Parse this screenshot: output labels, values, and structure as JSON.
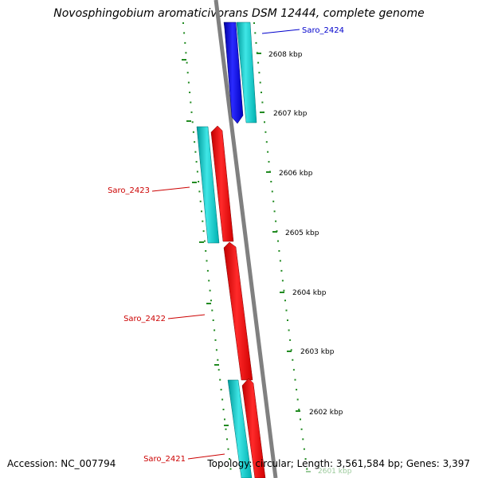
{
  "title": "Novosphingobium aromaticivorans DSM 12444, complete genome",
  "accession": "Accession: NC_007794",
  "summary": "Topology: circular; Length: 3,561,584 bp; Genes: 3,397",
  "colors": {
    "backbone": "#808080",
    "tick": "#228b22",
    "gene_forward": "#0000ff",
    "gene_reverse": "#ff0000",
    "cds": "#00cccc",
    "label_forward": "#0000cc",
    "label_reverse": "#cc0000"
  },
  "ticks": [
    {
      "label": "2608 kbp"
    },
    {
      "label": "2607 kbp"
    },
    {
      "label": "2606 kbp"
    },
    {
      "label": "2605 kbp"
    },
    {
      "label": "2604 kbp"
    },
    {
      "label": "2603 kbp"
    },
    {
      "label": "2602 kbp"
    },
    {
      "label": "2601 kbp"
    }
  ],
  "genes": [
    {
      "name": "Saro_2424",
      "strand": "forward"
    },
    {
      "name": "Saro_2423",
      "strand": "reverse"
    },
    {
      "name": "Saro_2422",
      "strand": "reverse"
    },
    {
      "name": "Saro_2421",
      "strand": "reverse"
    }
  ]
}
